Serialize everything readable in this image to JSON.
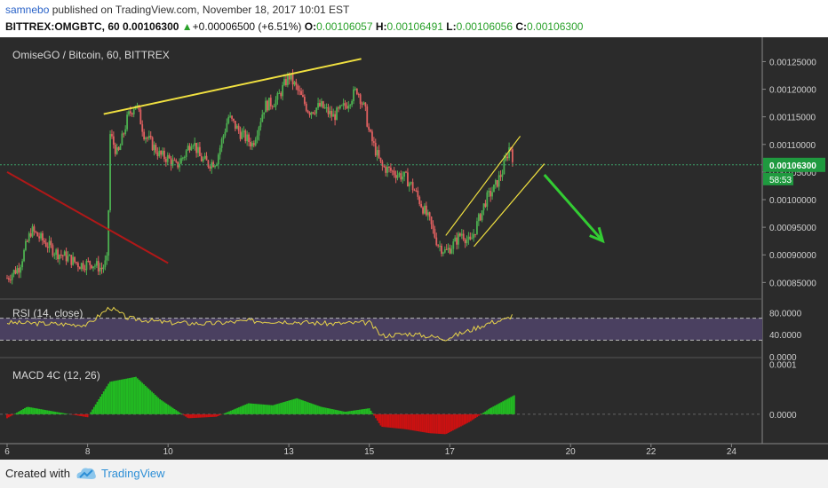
{
  "header": {
    "user": "samnebo",
    "published": " published on TradingView.com, November 18, 2017 10:01 EST",
    "symbol": "BITTREX:OMGBTC, 60",
    "last": "0.00106300",
    "change": "+0.00006500 (+6.51%)",
    "open_label": "O:",
    "open": "0.00106057",
    "high_label": "H:",
    "high": "0.00106491",
    "low_label": "L:",
    "low": "0.00106056",
    "close_label": "C:",
    "close": "0.00106300"
  },
  "footer": {
    "created_with": "Created with",
    "brand": "TradingView"
  },
  "colors": {
    "background": "#2b2b2b",
    "bull": "#4caf50",
    "bear": "#e06060",
    "trendline_yellow": "#f0e040",
    "trendline_red": "#b01818",
    "arrow_green": "#33cc33",
    "price_label": "#1f9a3f",
    "rsi_band": "#4a4060",
    "macd_pos": "#22bb22",
    "macd_neg": "#cc1111"
  },
  "chart_data": [
    {
      "type": "candlestick",
      "title": "OmiseGO / Bitcoin, 60, BITTREX",
      "x_ticks": [
        "6",
        "8",
        "10",
        "13",
        "15",
        "17",
        "20",
        "22",
        "24"
      ],
      "y_ticks": [
        "0.00125000",
        "0.00120000",
        "0.00115000",
        "0.00110000",
        "0.00105000",
        "0.00100000",
        "0.00095000",
        "0.00090000",
        "0.00085000"
      ],
      "ylim": [
        0.00082,
        0.00127
      ],
      "last_price_label": "0.00106300",
      "countdown_label": "58:53",
      "series": [
        {
          "name": "close",
          "points": [
            [
              6.0,
              0.000858
            ],
            [
              6.3,
              0.000878
            ],
            [
              6.6,
              0.000945
            ],
            [
              6.9,
              0.000925
            ],
            [
              7.2,
              0.000905
            ],
            [
              7.5,
              0.000895
            ],
            [
              7.8,
              0.000882
            ],
            [
              8.1,
              0.000885
            ],
            [
              8.35,
              0.000875
            ],
            [
              8.5,
              0.00089
            ],
            [
              8.55,
              0.00112
            ],
            [
              8.75,
              0.00108
            ],
            [
              9.0,
              0.00115
            ],
            [
              9.2,
              0.001175
            ],
            [
              9.4,
              0.00112
            ],
            [
              9.6,
              0.0011
            ],
            [
              9.8,
              0.00108
            ],
            [
              10.0,
              0.001075
            ],
            [
              10.2,
              0.00106
            ],
            [
              10.4,
              0.00108
            ],
            [
              10.6,
              0.00111
            ],
            [
              10.8,
              0.001075
            ],
            [
              11.0,
              0.001065
            ],
            [
              11.2,
              0.00107
            ],
            [
              11.5,
              0.00115
            ],
            [
              11.8,
              0.00112
            ],
            [
              12.1,
              0.0011
            ],
            [
              12.4,
              0.00117
            ],
            [
              12.7,
              0.00118
            ],
            [
              13.0,
              0.001225
            ],
            [
              13.2,
              0.0012
            ],
            [
              13.5,
              0.00116
            ],
            [
              13.8,
              0.00117
            ],
            [
              14.1,
              0.00115
            ],
            [
              14.4,
              0.00117
            ],
            [
              14.7,
              0.0012
            ],
            [
              14.9,
              0.00116
            ],
            [
              15.0,
              0.00112
            ],
            [
              15.3,
              0.00106
            ],
            [
              15.6,
              0.00105
            ],
            [
              15.9,
              0.00104
            ],
            [
              16.1,
              0.00102
            ],
            [
              16.3,
              0.00099
            ],
            [
              16.5,
              0.00096
            ],
            [
              16.7,
              0.00092
            ],
            [
              16.9,
              0.000905
            ],
            [
              17.1,
              0.00092
            ],
            [
              17.3,
              0.00094
            ],
            [
              17.5,
              0.00092
            ],
            [
              17.7,
              0.00096
            ],
            [
              17.9,
              0.001
            ],
            [
              18.1,
              0.00102
            ],
            [
              18.3,
              0.00105
            ],
            [
              18.5,
              0.0011
            ],
            [
              18.6,
              0.001063
            ]
          ]
        },
        {
          "name": "trendline_upper",
          "points": [
            [
              8.4,
              0.001155
            ],
            [
              14.8,
              0.001255
            ]
          ]
        },
        {
          "name": "trendline_red",
          "points": [
            [
              6.0,
              0.00105
            ],
            [
              10.0,
              0.000885
            ]
          ]
        },
        {
          "name": "channel_upper",
          "points": [
            [
              16.9,
              0.000935
            ],
            [
              18.75,
              0.001115
            ]
          ]
        },
        {
          "name": "channel_lower",
          "points": [
            [
              17.6,
              0.000915
            ],
            [
              19.35,
              0.001065
            ]
          ]
        },
        {
          "name": "arrow",
          "points": [
            [
              19.35,
              0.001045
            ],
            [
              20.8,
              0.000925
            ]
          ]
        }
      ]
    },
    {
      "type": "line",
      "title": "RSI (14, close)",
      "y_ticks": [
        "80.0000",
        "40.0000",
        "0.0000"
      ],
      "ylim": [
        0,
        100
      ],
      "bands": [
        30,
        70
      ],
      "series": [
        {
          "name": "RSI",
          "points": [
            [
              6.0,
              62
            ],
            [
              7.0,
              60
            ],
            [
              8.0,
              58
            ],
            [
              8.55,
              90
            ],
            [
              9.0,
              70
            ],
            [
              10.0,
              62
            ],
            [
              11.0,
              60
            ],
            [
              12.0,
              65
            ],
            [
              13.0,
              64
            ],
            [
              14.0,
              60
            ],
            [
              15.0,
              62
            ],
            [
              15.3,
              38
            ],
            [
              16.0,
              42
            ],
            [
              16.9,
              33
            ],
            [
              17.5,
              48
            ],
            [
              18.0,
              62
            ],
            [
              18.4,
              68
            ],
            [
              18.6,
              78
            ]
          ]
        }
      ]
    },
    {
      "type": "bar",
      "title": "MACD 4C (12, 26)",
      "y_ticks": [
        "0.0001",
        "0.0000"
      ],
      "ylim": [
        -5e-05,
        0.00011
      ],
      "series": [
        {
          "name": "MACD",
          "points": [
            [
              6.0,
              -8e-06
            ],
            [
              6.5,
              1.5e-05
            ],
            [
              7.2,
              5e-06
            ],
            [
              8.0,
              -6e-06
            ],
            [
              8.55,
              6.5e-05
            ],
            [
              9.2,
              7.5e-05
            ],
            [
              9.8,
              3e-05
            ],
            [
              10.5,
              -8e-06
            ],
            [
              11.2,
              -5e-06
            ],
            [
              12.0,
              2.2e-05
            ],
            [
              12.6,
              1.8e-05
            ],
            [
              13.2,
              3.2e-05
            ],
            [
              13.8,
              1.5e-05
            ],
            [
              14.4,
              5e-06
            ],
            [
              15.0,
              1.2e-05
            ],
            [
              15.3,
              -2.5e-05
            ],
            [
              15.9,
              -3e-05
            ],
            [
              16.5,
              -3.8e-05
            ],
            [
              16.9,
              -4e-05
            ],
            [
              17.5,
              -1.5e-05
            ],
            [
              18.0,
              1.2e-05
            ],
            [
              18.6,
              3.8e-05
            ]
          ]
        }
      ]
    }
  ]
}
